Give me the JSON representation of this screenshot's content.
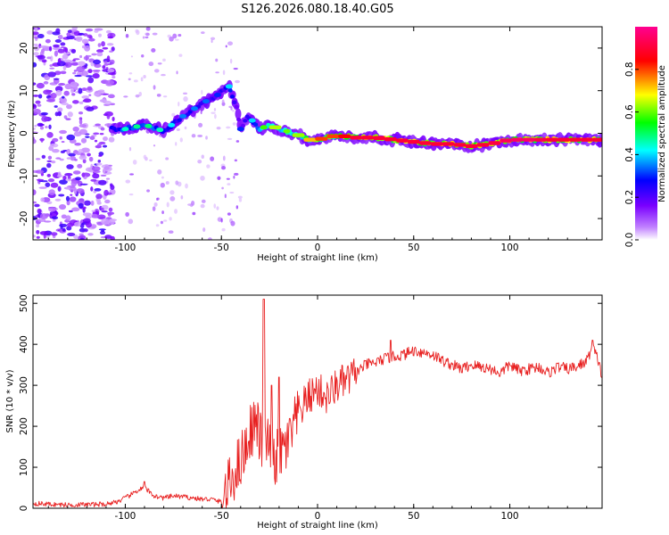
{
  "chart_data": [
    {
      "type": "heatmap",
      "title": "S126.2026.080.18.40.G05",
      "xlabel": "Height of straight line (km)",
      "ylabel": "Frequency (Hz)",
      "xlim": [
        -148,
        148
      ],
      "ylim": [
        -25,
        25
      ],
      "xticks": [
        -100,
        -50,
        0,
        50,
        100
      ],
      "yticks": [
        -20,
        -10,
        0,
        10,
        20
      ],
      "colorbar": {
        "label": "Normalized spectral amplitude",
        "range": [
          0,
          1
        ],
        "ticks": [
          0.0,
          0.2,
          0.4,
          0.6,
          0.8
        ],
        "colors": [
          "#ffffff",
          "#8a00ff",
          "#0000ff",
          "#00ffff",
          "#00ff00",
          "#ffff00",
          "#ff0000",
          "#ff00a0"
        ]
      },
      "ridge": {
        "x": [
          -107,
          -100,
          -90,
          -80,
          -70,
          -60,
          -52,
          -46,
          -42,
          -40,
          -36,
          -30,
          -25,
          -20,
          -12,
          -5,
          0,
          10,
          20,
          30,
          40,
          50,
          60,
          70,
          80,
          90,
          100,
          110,
          120,
          130,
          140,
          148
        ],
        "y": [
          1,
          1,
          2,
          0.5,
          4,
          7,
          9,
          11,
          6,
          1,
          4,
          1,
          2,
          1,
          0,
          -1.5,
          -1.5,
          -0.5,
          -1,
          -1,
          -1.5,
          -2,
          -2.5,
          -2.5,
          -3,
          -2.5,
          -1.5,
          -1.5,
          -1.5,
          -1.5,
          -1.5,
          -1.5
        ],
        "amplitude": [
          0.4,
          0.45,
          0.5,
          0.45,
          0.35,
          0.35,
          0.3,
          0.4,
          0.3,
          0.3,
          0.35,
          0.5,
          0.7,
          0.6,
          0.6,
          0.7,
          0.8,
          0.8,
          0.9,
          0.9,
          0.9,
          0.9,
          0.9,
          0.9,
          0.9,
          0.9,
          0.95,
          0.95,
          0.9,
          0.9,
          0.9,
          0.9
        ]
      }
    },
    {
      "type": "line",
      "xlabel": "Height of straight line (km)",
      "ylabel": "SNR (10 * v/v)",
      "xlim": [
        -148,
        148
      ],
      "ylim": [
        0,
        520
      ],
      "xticks": [
        -100,
        -50,
        0,
        50,
        100
      ],
      "yticks": [
        0,
        100,
        200,
        300,
        400,
        500
      ],
      "series": [
        {
          "name": "SNR",
          "color": "#e82020",
          "x": [
            -148,
            -140,
            -130,
            -120,
            -110,
            -103,
            -98,
            -93,
            -90,
            -85,
            -80,
            -75,
            -70,
            -65,
            -60,
            -55,
            -50,
            -46,
            -42,
            -38,
            -35,
            -32,
            -28,
            -25,
            -22,
            -18,
            -15,
            -10,
            -5,
            0,
            5,
            10,
            15,
            20,
            25,
            30,
            35,
            40,
            45,
            50,
            55,
            60,
            65,
            70,
            75,
            80,
            85,
            90,
            95,
            100,
            105,
            110,
            115,
            120,
            125,
            130,
            135,
            140,
            143,
            146,
            148
          ],
          "y": [
            12,
            10,
            8,
            9,
            10,
            18,
            30,
            45,
            50,
            30,
            25,
            30,
            28,
            25,
            22,
            22,
            15,
            55,
            100,
            140,
            190,
            210,
            140,
            160,
            120,
            140,
            160,
            230,
            270,
            290,
            270,
            300,
            310,
            330,
            350,
            355,
            365,
            370,
            375,
            385,
            380,
            375,
            360,
            350,
            340,
            350,
            345,
            340,
            330,
            350,
            335,
            340,
            345,
            330,
            345,
            340,
            345,
            360,
            395,
            360,
            320
          ],
          "spikes": [
            {
              "x": -28,
              "y": 510
            },
            {
              "x": -24,
              "y": 300
            },
            {
              "x": -20,
              "y": 320
            },
            {
              "x": -90,
              "y": 65
            },
            {
              "x": 38,
              "y": 410
            },
            {
              "x": 143,
              "y": 410
            }
          ]
        }
      ]
    }
  ]
}
